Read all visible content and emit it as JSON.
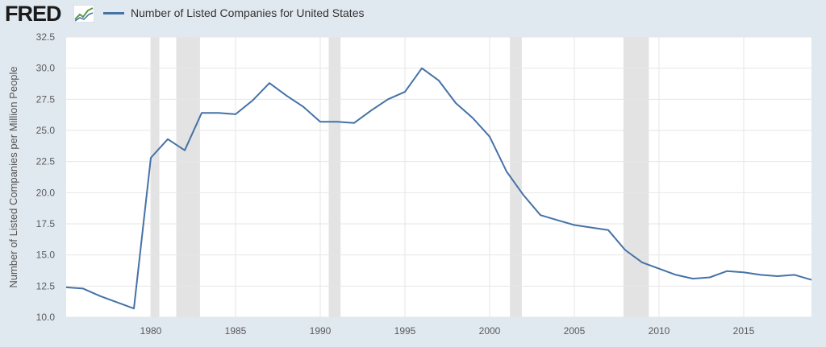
{
  "header": {
    "logo_text": "FRED",
    "legend_label": "Number of Listed Companies for United States"
  },
  "colors": {
    "background": "#e1e9f0",
    "plot_background": "#ffffff",
    "line": "#4572a7",
    "recession": "#e3e3e3",
    "grid": "#e6e6e6"
  },
  "chart_data": {
    "type": "line",
    "title": "",
    "xlabel": "",
    "ylabel": "Number of Listed Companies per Million People",
    "xlim": [
      1975,
      2019
    ],
    "ylim": [
      10.0,
      32.5
    ],
    "yticks": [
      "10.0",
      "12.5",
      "15.0",
      "17.5",
      "20.0",
      "22.5",
      "25.0",
      "27.5",
      "30.0",
      "32.5"
    ],
    "xticks": [
      "1980",
      "1985",
      "1990",
      "1995",
      "2000",
      "2005",
      "2010",
      "2015"
    ],
    "grid": true,
    "recessions": [
      [
        1980.0,
        1980.5
      ],
      [
        1981.5,
        1982.9
      ],
      [
        1990.5,
        1991.2
      ],
      [
        2001.2,
        2001.9
      ],
      [
        2007.9,
        2009.4
      ]
    ],
    "series": [
      {
        "name": "Number of Listed Companies for United States",
        "x": [
          1975,
          1976,
          1977,
          1978,
          1979,
          1980,
          1981,
          1982,
          1983,
          1984,
          1985,
          1986,
          1987,
          1988,
          1989,
          1990,
          1991,
          1992,
          1993,
          1994,
          1995,
          1996,
          1997,
          1998,
          1999,
          2000,
          2001,
          2002,
          2003,
          2004,
          2005,
          2006,
          2007,
          2008,
          2009,
          2010,
          2011,
          2012,
          2013,
          2014,
          2015,
          2016,
          2017,
          2018,
          2019
        ],
        "values": [
          12.4,
          12.3,
          11.7,
          11.2,
          10.7,
          22.8,
          24.3,
          23.4,
          26.4,
          26.4,
          26.3,
          27.4,
          28.8,
          27.8,
          26.9,
          25.7,
          25.7,
          25.6,
          26.6,
          27.5,
          28.1,
          30.0,
          29.0,
          27.2,
          26.0,
          24.5,
          21.7,
          19.8,
          18.2,
          17.8,
          17.4,
          17.2,
          17.0,
          15.4,
          14.4,
          13.9,
          13.4,
          13.1,
          13.2,
          13.7,
          13.6,
          13.4,
          13.3,
          13.4,
          13.0
        ]
      }
    ]
  }
}
